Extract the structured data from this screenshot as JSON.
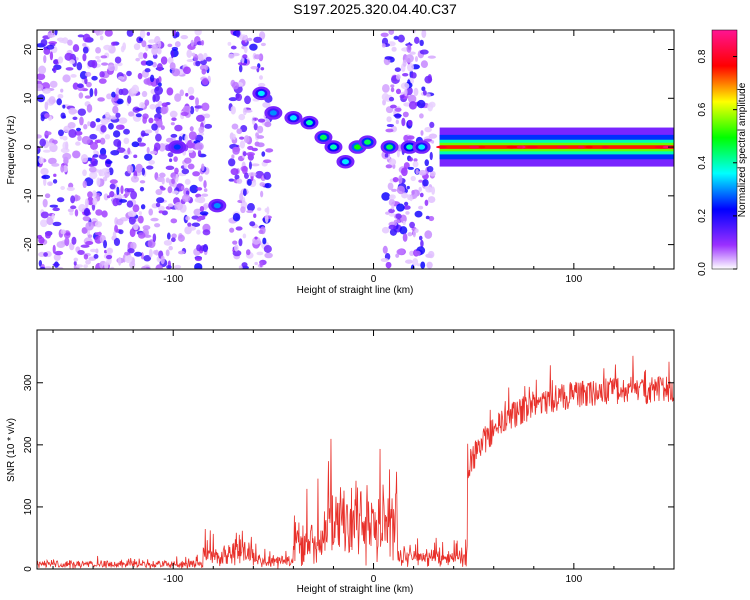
{
  "title": "S197.2025.320.04.40.C37",
  "colors": {
    "snr_line": "#e8302a",
    "axis": "#000000",
    "background": "#ffffff"
  },
  "chart_data": [
    {
      "type": "heatmap",
      "name": "spectrogram",
      "title": "S197.2025.320.04.40.C37",
      "xlabel": "Height of straight line (km)",
      "ylabel": "Frequency (Hz)",
      "xlim": [
        -168,
        150
      ],
      "ylim": [
        -25,
        24
      ],
      "xticks": [
        -100,
        0,
        100
      ],
      "yticks": [
        -20,
        -10,
        0,
        10,
        20
      ],
      "colormap": [
        "#ffffff",
        "#8a2be2",
        "#0000ff",
        "#00ffff",
        "#00ff00",
        "#ffff00",
        "#ff0000",
        "#ff1493"
      ],
      "colorbar": {
        "label": "Normalized spectral amplitude",
        "range": [
          0,
          0.9
        ],
        "ticks": [
          0.0,
          0.2,
          0.4,
          0.6,
          0.8
        ]
      },
      "noise_bands": [
        [
          -168,
          -82
        ],
        [
          -72,
          -52
        ],
        [
          5,
          30
        ]
      ],
      "blobs": [
        {
          "x": -98,
          "y": 0,
          "amp": 0.25
        },
        {
          "x": -78,
          "y": -12,
          "amp": 0.3
        },
        {
          "x": -56,
          "y": 11,
          "amp": 0.35
        },
        {
          "x": -50,
          "y": 7,
          "amp": 0.3
        },
        {
          "x": -40,
          "y": 6,
          "amp": 0.35
        },
        {
          "x": -32,
          "y": 5,
          "amp": 0.4
        },
        {
          "x": -25,
          "y": 2,
          "amp": 0.45
        },
        {
          "x": -20,
          "y": 0,
          "amp": 0.4
        },
        {
          "x": -14,
          "y": -3,
          "amp": 0.35
        },
        {
          "x": -8,
          "y": 0,
          "amp": 0.5
        },
        {
          "x": -3,
          "y": 1,
          "amp": 0.45
        },
        {
          "x": 8,
          "y": 0,
          "amp": 0.45
        },
        {
          "x": 18,
          "y": 0,
          "amp": 0.4
        },
        {
          "x": 24,
          "y": 0,
          "amp": 0.35
        }
      ],
      "band": {
        "x_start": 33,
        "x_end": 150,
        "freq": 0,
        "half_width": 2.5,
        "amp": 0.75
      }
    },
    {
      "type": "line",
      "name": "snr",
      "xlabel": "Height of straight line (km)",
      "ylabel": "SNR (10 * v/v)",
      "xlim": [
        -168,
        150
      ],
      "ylim": [
        0,
        385
      ],
      "xticks": [
        -100,
        0,
        100
      ],
      "yticks": [
        0,
        100,
        200,
        300
      ],
      "segments": [
        {
          "x": [
            -168,
            -85
          ],
          "base": 10,
          "noise": 14
        },
        {
          "x": [
            -85,
            -60
          ],
          "base": 25,
          "noise": 70
        },
        {
          "x": [
            -60,
            -40
          ],
          "base": 15,
          "noise": 30
        },
        {
          "x": [
            -40,
            -25
          ],
          "base": 40,
          "noise": 110
        },
        {
          "x": [
            -25,
            12
          ],
          "base": 90,
          "noise": 140
        },
        {
          "x": [
            12,
            47
          ],
          "base": 20,
          "noise": 50
        }
      ],
      "ramp": {
        "x": [
          47,
          150
        ],
        "start": 160,
        "end": 285,
        "noise": 45
      }
    }
  ]
}
